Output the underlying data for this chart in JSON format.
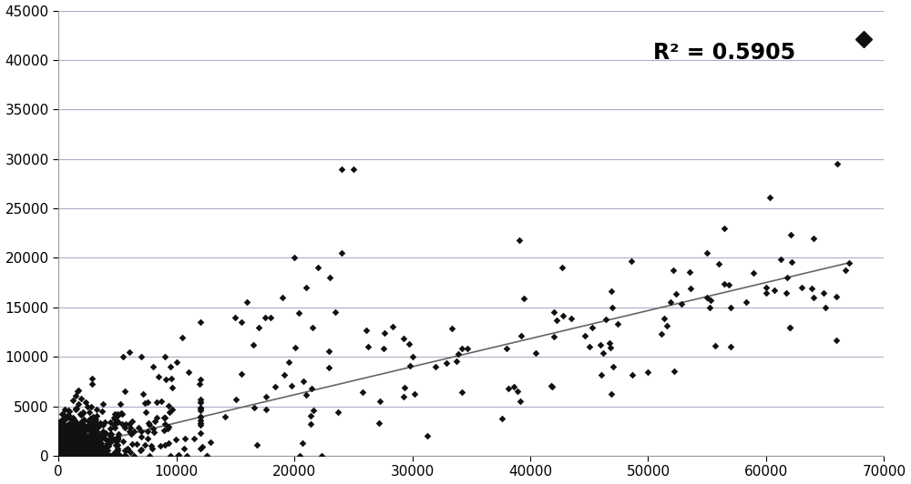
{
  "title": "",
  "xlim": [
    0,
    70000
  ],
  "ylim": [
    0,
    45000
  ],
  "xticks": [
    0,
    10000,
    20000,
    30000,
    40000,
    50000,
    60000,
    70000
  ],
  "yticks": [
    0,
    5000,
    10000,
    15000,
    20000,
    25000,
    30000,
    35000,
    40000,
    45000
  ],
  "r_squared": "R² = 0.5905",
  "marker_color": "#111111",
  "line_color": "#666666",
  "grid_color": "#b8a8c8",
  "background_color": "#ffffff",
  "trend_x0": 0,
  "trend_x1": 67000,
  "trend_y0": 500,
  "trend_y1": 19500,
  "figwidth": 10.0,
  "figheight": 5.32,
  "dpi": 100
}
